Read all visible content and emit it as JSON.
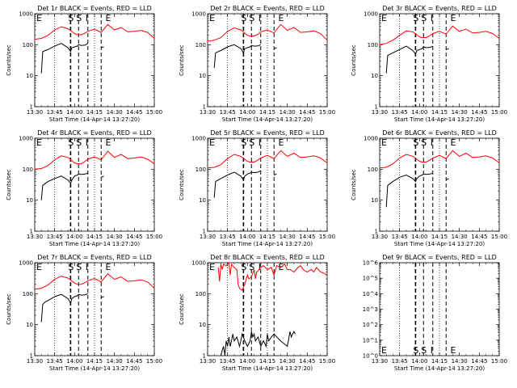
{
  "figure_title": "",
  "chart_data": [
    {
      "panel_title": "Det 1r BLACK = Events, RED = LLD",
      "type": "line",
      "xlabel": "Start Time (14-Apr-14 13:27:20)",
      "ylabel": "Counts/sec",
      "xticks": [
        "13:30",
        "13:45",
        "14:00",
        "14:15",
        "14:30",
        "14:45",
        "15:00"
      ],
      "yticks": [
        "1",
        "10",
        "100",
        "1000"
      ],
      "ylim": [
        1,
        1000
      ],
      "yscale": "log",
      "markers": [
        "E",
        "S",
        "S",
        "I",
        "E"
      ],
      "series": [
        {
          "color": "#ff0000",
          "x": [
            0,
            5,
            10,
            15,
            20,
            25,
            30,
            32,
            35,
            38,
            40,
            45,
            50,
            55,
            60,
            65,
            70,
            75,
            80,
            85,
            90
          ],
          "y": [
            150,
            160,
            200,
            300,
            380,
            330,
            230,
            210,
            210,
            240,
            270,
            320,
            250,
            450,
            300,
            360,
            260,
            270,
            290,
            250,
            160
          ]
        },
        {
          "color": "#000000",
          "x": [
            5,
            6,
            8,
            10,
            15,
            20,
            25,
            27,
            28,
            30,
            32,
            33,
            35,
            38,
            40,
            45,
            50,
            52
          ],
          "y": [
            12,
            60,
            65,
            70,
            90,
            110,
            80,
            60,
            80,
            85,
            90,
            100,
            95,
            97,
            110,
            null,
            80,
            85
          ]
        }
      ]
    },
    {
      "panel_title": "Det 2r BLACK = Events, RED = LLD",
      "type": "line",
      "xlabel": "Start Time (14-Apr-14 13:27:20)",
      "ylabel": "Counts/sec",
      "xticks": [
        "13:30",
        "13:45",
        "14:00",
        "14:15",
        "14:30",
        "14:45",
        "15:00"
      ],
      "yticks": [
        "1",
        "10",
        "100",
        "1000"
      ],
      "ylim": [
        1,
        1000
      ],
      "yscale": "log",
      "markers": [
        "E",
        "S",
        "S",
        "I",
        "E"
      ],
      "series": [
        {
          "color": "#ff0000",
          "x": [
            0,
            5,
            10,
            15,
            20,
            25,
            30,
            32,
            35,
            38,
            40,
            45,
            50,
            55,
            60,
            65,
            70,
            75,
            80,
            85,
            90
          ],
          "y": [
            130,
            140,
            170,
            270,
            350,
            300,
            200,
            190,
            190,
            220,
            260,
            300,
            240,
            450,
            290,
            360,
            250,
            260,
            280,
            230,
            140
          ]
        },
        {
          "color": "#000000",
          "x": [
            5,
            6,
            8,
            10,
            15,
            20,
            25,
            27,
            28,
            30,
            32,
            33,
            35,
            38,
            40,
            45,
            50,
            52
          ],
          "y": [
            18,
            55,
            60,
            65,
            85,
            100,
            75,
            55,
            75,
            80,
            85,
            95,
            90,
            92,
            100,
            null,
            75,
            80
          ]
        }
      ]
    },
    {
      "panel_title": "Det 3r BLACK = Events, RED = LLD",
      "type": "line",
      "xlabel": "Start Time (14-Apr-14 13:27:20)",
      "ylabel": "Counts/sec",
      "xticks": [
        "13:30",
        "13:45",
        "14:00",
        "14:15",
        "14:30",
        "14:45",
        "15:00"
      ],
      "yticks": [
        "1",
        "10",
        "100",
        "1000"
      ],
      "ylim": [
        1,
        1000
      ],
      "yscale": "log",
      "markers": [
        "E",
        "S",
        "S",
        "I",
        "E"
      ],
      "series": [
        {
          "color": "#ff0000",
          "x": [
            0,
            5,
            10,
            15,
            20,
            25,
            30,
            32,
            35,
            38,
            40,
            45,
            50,
            55,
            60,
            65,
            70,
            75,
            80,
            85,
            90
          ],
          "y": [
            100,
            110,
            140,
            200,
            280,
            260,
            180,
            170,
            170,
            200,
            230,
            270,
            220,
            400,
            270,
            320,
            240,
            250,
            270,
            230,
            160
          ]
        },
        {
          "color": "#000000",
          "x": [
            5,
            6,
            8,
            10,
            15,
            20,
            25,
            27,
            28,
            30,
            32,
            33,
            35,
            38,
            40,
            45,
            50,
            52
          ],
          "y": [
            12,
            45,
            50,
            55,
            70,
            90,
            65,
            50,
            65,
            70,
            75,
            85,
            80,
            82,
            90,
            null,
            70,
            75
          ]
        }
      ]
    },
    {
      "panel_title": "Det 4r BLACK = Events, RED = LLD",
      "type": "line",
      "xlabel": "Start Time (14-Apr-14 13:27:20)",
      "ylabel": "Counts/sec",
      "xticks": [
        "13:30",
        "13:45",
        "14:00",
        "14:15",
        "14:30",
        "14:45",
        "15:00"
      ],
      "yticks": [
        "1",
        "10",
        "100",
        "1000"
      ],
      "ylim": [
        1,
        1000
      ],
      "yscale": "log",
      "markers": [
        "E",
        "S",
        "S",
        "I",
        "E"
      ],
      "series": [
        {
          "color": "#ff0000",
          "x": [
            0,
            5,
            10,
            15,
            20,
            25,
            30,
            32,
            35,
            38,
            40,
            45,
            50,
            55,
            60,
            65,
            70,
            75,
            80,
            85,
            90
          ],
          "y": [
            100,
            105,
            130,
            200,
            270,
            240,
            160,
            150,
            150,
            180,
            210,
            250,
            200,
            380,
            240,
            300,
            220,
            230,
            250,
            210,
            150
          ]
        },
        {
          "color": "#000000",
          "x": [
            5,
            6,
            8,
            10,
            15,
            20,
            25,
            27,
            28,
            30,
            32,
            33,
            35,
            38,
            40,
            45,
            50,
            52
          ],
          "y": [
            10,
            30,
            35,
            40,
            50,
            60,
            45,
            35,
            45,
            60,
            65,
            70,
            68,
            70,
            75,
            null,
            55,
            60
          ]
        }
      ]
    },
    {
      "panel_title": "Det 5r BLACK = Events, RED = LLD",
      "type": "line",
      "xlabel": "Start Time (14-Apr-14 13:27:20)",
      "ylabel": "Counts/sec",
      "xticks": [
        "13:30",
        "13:45",
        "14:00",
        "14:15",
        "14:30",
        "14:45",
        "15:00"
      ],
      "yticks": [
        "1",
        "10",
        "100",
        "1000"
      ],
      "ylim": [
        1,
        1000
      ],
      "yscale": "log",
      "markers": [
        "E",
        "S",
        "S",
        "I",
        "E"
      ],
      "series": [
        {
          "color": "#ff0000",
          "x": [
            0,
            5,
            10,
            15,
            20,
            25,
            30,
            32,
            35,
            38,
            40,
            45,
            50,
            55,
            60,
            65,
            70,
            75,
            80,
            85,
            90
          ],
          "y": [
            110,
            115,
            140,
            220,
            300,
            260,
            180,
            170,
            170,
            200,
            230,
            280,
            220,
            400,
            260,
            330,
            240,
            250,
            270,
            230,
            160
          ]
        },
        {
          "color": "#000000",
          "x": [
            5,
            6,
            8,
            10,
            15,
            20,
            25,
            27,
            28,
            30,
            32,
            33,
            35,
            38,
            40,
            45,
            50,
            52
          ],
          "y": [
            12,
            40,
            45,
            50,
            65,
            80,
            60,
            45,
            60,
            70,
            75,
            80,
            78,
            80,
            90,
            null,
            65,
            70
          ]
        }
      ]
    },
    {
      "panel_title": "Det 6r BLACK = Events, RED = LLD",
      "type": "line",
      "xlabel": "Start Time (14-Apr-14 13:27:20)",
      "ylabel": "Counts/sec",
      "xticks": [
        "13:30",
        "13:45",
        "14:00",
        "14:15",
        "14:30",
        "14:45",
        "15:00"
      ],
      "yticks": [
        "1",
        "10",
        "100",
        "1000"
      ],
      "ylim": [
        1,
        1000
      ],
      "yscale": "log",
      "markers": [
        "E",
        "S",
        "S",
        "I",
        "E"
      ],
      "series": [
        {
          "color": "#ff0000",
          "x": [
            0,
            5,
            10,
            15,
            20,
            25,
            30,
            32,
            35,
            38,
            40,
            45,
            50,
            55,
            60,
            65,
            70,
            75,
            80,
            85,
            90
          ],
          "y": [
            110,
            115,
            150,
            230,
            300,
            260,
            180,
            170,
            170,
            200,
            230,
            280,
            220,
            400,
            260,
            330,
            240,
            250,
            270,
            230,
            160
          ]
        },
        {
          "color": "#000000",
          "x": [
            5,
            6,
            8,
            10,
            15,
            20,
            25,
            27,
            28,
            30,
            32,
            33,
            35,
            38,
            40,
            45,
            50,
            52
          ],
          "y": [
            6,
            30,
            35,
            40,
            55,
            65,
            50,
            40,
            50,
            60,
            65,
            70,
            68,
            70,
            75,
            null,
            45,
            50
          ]
        }
      ]
    },
    {
      "panel_title": "Det 7r BLACK = Events, RED = LLD",
      "type": "line",
      "xlabel": "Start Time (14-Apr-14 13:27:20)",
      "ylabel": "Counts/sec",
      "xticks": [
        "13:30",
        "13:45",
        "14:00",
        "14:15",
        "14:30",
        "14:45",
        "15:00"
      ],
      "yticks": [
        "1",
        "10",
        "100",
        "1000"
      ],
      "ylim": [
        1,
        1000
      ],
      "yscale": "log",
      "markers": [
        "E",
        "S",
        "S",
        "I",
        "E"
      ],
      "series": [
        {
          "color": "#ff0000",
          "x": [
            0,
            5,
            10,
            15,
            20,
            25,
            30,
            32,
            35,
            38,
            40,
            45,
            50,
            55,
            60,
            65,
            70,
            75,
            80,
            85,
            90
          ],
          "y": [
            140,
            150,
            190,
            290,
            370,
            320,
            220,
            200,
            200,
            230,
            260,
            310,
            240,
            440,
            290,
            350,
            250,
            260,
            280,
            240,
            150
          ]
        },
        {
          "color": "#000000",
          "x": [
            5,
            6,
            8,
            10,
            15,
            20,
            25,
            27,
            28,
            30,
            32,
            33,
            35,
            38,
            40,
            45,
            50,
            52
          ],
          "y": [
            12,
            45,
            55,
            60,
            80,
            95,
            70,
            50,
            70,
            80,
            85,
            95,
            90,
            92,
            100,
            null,
            75,
            80
          ]
        }
      ]
    },
    {
      "panel_title": "Det 8r BLACK = Events, RED = LLD",
      "type": "line",
      "xlabel": "Start Time (14-Apr-14 13:27:20)",
      "ylabel": "Counts/sec",
      "xticks": [
        "13:30",
        "13:45",
        "14:00",
        "14:15",
        "14:30",
        "14:45",
        "15:00"
      ],
      "yticks": [
        "1",
        "10",
        "100",
        "1000"
      ],
      "ylim": [
        1,
        1000
      ],
      "yscale": "log",
      "markers": [
        "E",
        "S",
        "S",
        "I",
        "E"
      ],
      "series": [
        {
          "color": "#ff0000",
          "x": [
            8,
            9,
            10,
            11,
            12,
            14,
            16,
            17,
            18,
            20,
            22,
            23,
            24,
            26,
            28,
            30,
            31,
            33,
            35,
            36,
            37,
            38,
            40,
            42,
            45,
            48,
            50,
            52,
            55,
            58,
            60,
            62,
            65,
            68,
            70,
            72,
            75,
            78,
            80,
            82,
            85,
            88,
            90
          ],
          "y": [
            700,
            250,
            900,
            600,
            900,
            800,
            1000,
            400,
            900,
            700,
            600,
            200,
            150,
            130,
            200,
            400,
            300,
            350,
            600,
            300,
            500,
            550,
            700,
            800,
            600,
            700,
            400,
            800,
            700,
            900,
            600,
            600,
            500,
            700,
            800,
            600,
            500,
            600,
            500,
            700,
            500,
            450,
            400
          ]
        },
        {
          "color": "#000000",
          "x": [
            10,
            11,
            12,
            13,
            14,
            15,
            16,
            17,
            18,
            19,
            20,
            22,
            24,
            25,
            26,
            28,
            30,
            32,
            33,
            34,
            35,
            36,
            38,
            40,
            42,
            44,
            45,
            46,
            48,
            50,
            55,
            60,
            62,
            63,
            64,
            65,
            66
          ],
          "y": [
            1,
            1.5,
            2,
            1,
            3,
            2,
            4,
            2,
            3,
            5,
            3,
            4,
            2,
            3,
            5,
            3,
            2,
            3,
            6,
            4,
            5,
            3,
            4,
            2,
            3,
            2,
            5,
            3,
            4,
            5,
            3,
            2,
            6,
            4,
            5,
            6,
            5
          ]
        }
      ]
    },
    {
      "panel_title": "Det 9r BLACK = Events, RED = LLD",
      "type": "line",
      "xlabel": "Start Time (14-Apr-14 13:27:20)",
      "ylabel": "",
      "xticks": [
        "13:30",
        "13:45",
        "14:00",
        "14:15",
        "14:30",
        "14:45",
        "15:00"
      ],
      "yticks": [
        "10^0",
        "10^1",
        "10^2",
        "10^3",
        "10^4",
        "10^5",
        "10^6"
      ],
      "ylim": [
        1,
        1000000
      ],
      "yscale": "log",
      "markers": [
        "E",
        "S",
        "S",
        "I",
        "E"
      ],
      "series": []
    }
  ]
}
